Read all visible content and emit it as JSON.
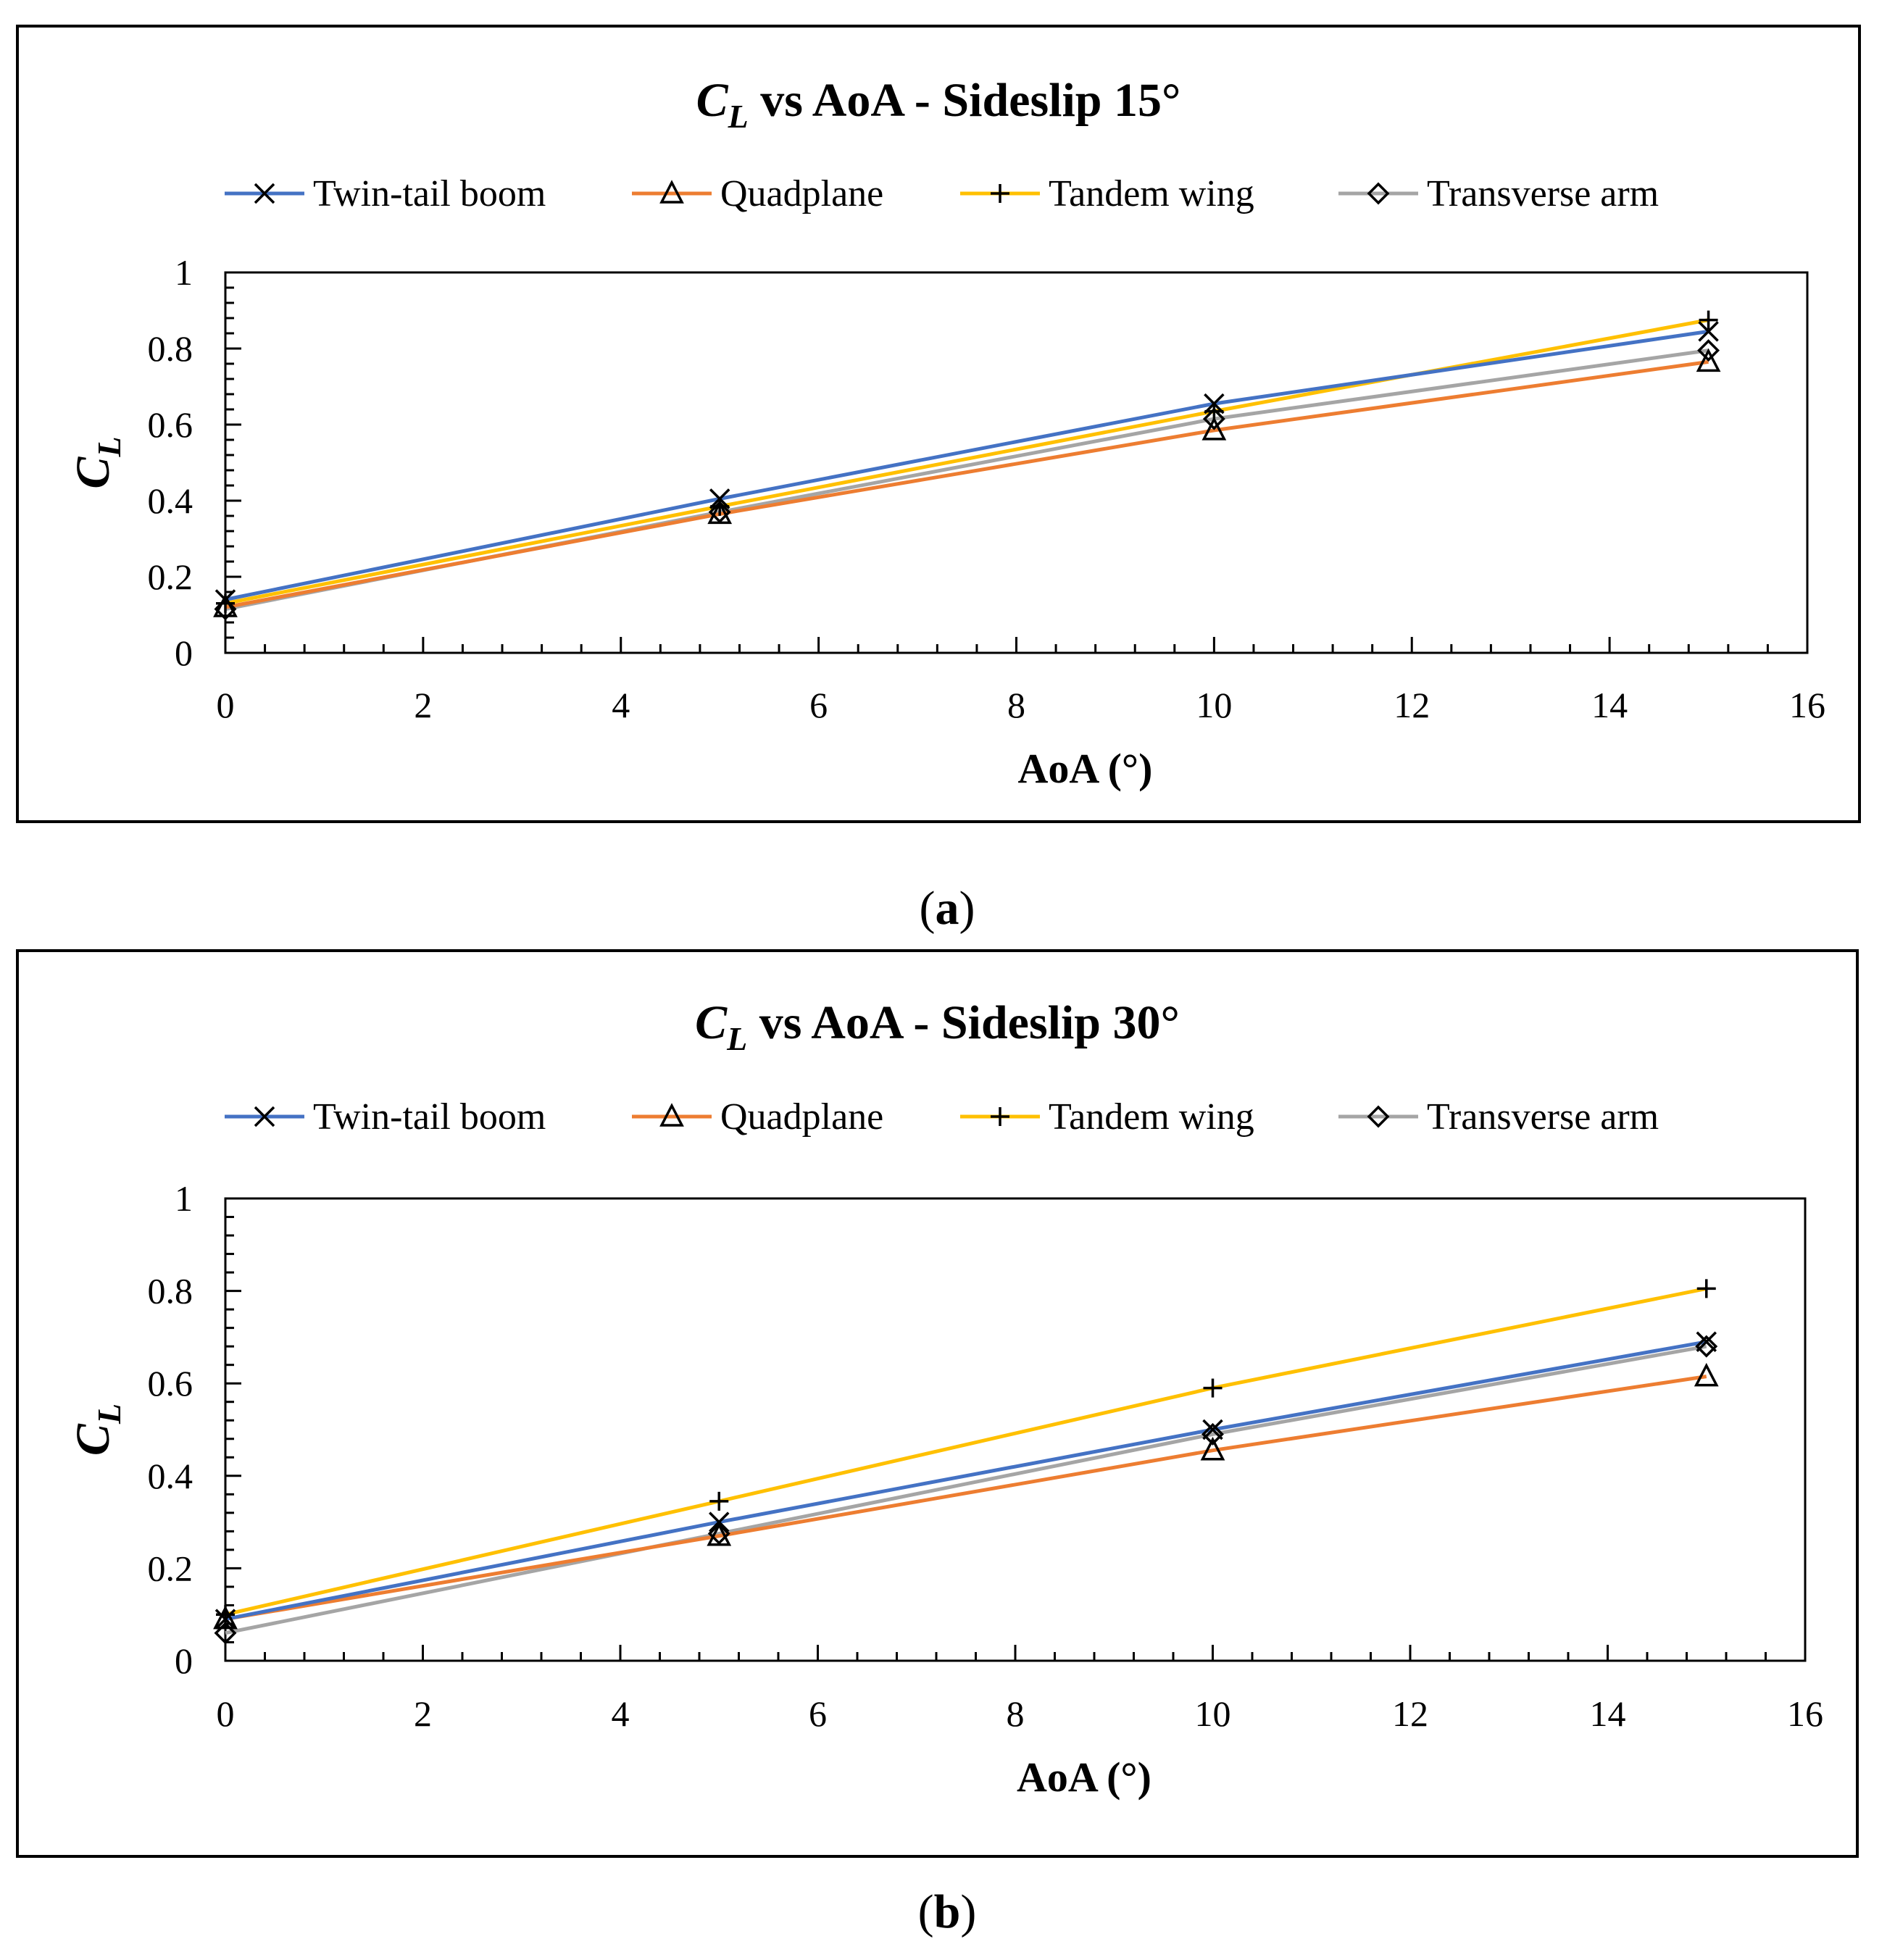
{
  "series_colors": {
    "twin": "#4472c4",
    "quad": "#ed7d31",
    "tandem": "#ffc000",
    "transverse": "#a5a5a5"
  },
  "chart_data": [
    {
      "type": "line",
      "title_symbol": "C",
      "title_subscript": "L",
      "title_rest": " vs AoA - Sideslip 15°",
      "xlabel": "AoA (°)",
      "ylabel_symbol": "C",
      "ylabel_subscript": "L",
      "caption": "a",
      "xlim": [
        0,
        16
      ],
      "ylim": [
        0,
        1
      ],
      "x_ticks": [
        "0",
        "2",
        "4",
        "6",
        "8",
        "10",
        "12",
        "14",
        "16"
      ],
      "y_ticks": [
        "0",
        "0.2",
        "0.4",
        "0.6",
        "0.8",
        "1"
      ],
      "x": [
        0,
        5,
        10,
        15
      ],
      "series": [
        {
          "key": "twin",
          "name": "Twin-tail boom",
          "marker": "x",
          "values": [
            0.14,
            0.405,
            0.655,
            0.845
          ]
        },
        {
          "key": "quad",
          "name": "Quadplane",
          "marker": "triangle",
          "values": [
            0.12,
            0.365,
            0.585,
            0.765
          ]
        },
        {
          "key": "tandem",
          "name": "Tandem wing",
          "marker": "plus",
          "values": [
            0.13,
            0.385,
            0.635,
            0.875
          ]
        },
        {
          "key": "transverse",
          "name": "Transverse arm",
          "marker": "diamond",
          "values": [
            0.115,
            0.37,
            0.615,
            0.795
          ]
        }
      ]
    },
    {
      "type": "line",
      "title_symbol": "C",
      "title_subscript": "L",
      "title_rest": " vs AoA - Sideslip 30°",
      "xlabel": "AoA (°)",
      "ylabel_symbol": "C",
      "ylabel_subscript": "L",
      "caption": "b",
      "xlim": [
        0,
        16
      ],
      "ylim": [
        0,
        1
      ],
      "x_ticks": [
        "0",
        "2",
        "4",
        "6",
        "8",
        "10",
        "12",
        "14",
        "16"
      ],
      "y_ticks": [
        "0",
        "0.2",
        "0.4",
        "0.6",
        "0.8",
        "1"
      ],
      "x": [
        0,
        5,
        10,
        15
      ],
      "series": [
        {
          "key": "twin",
          "name": "Twin-tail boom",
          "marker": "x",
          "values": [
            0.09,
            0.3,
            0.5,
            0.69
          ]
        },
        {
          "key": "quad",
          "name": "Quadplane",
          "marker": "triangle",
          "values": [
            0.09,
            0.27,
            0.455,
            0.615
          ]
        },
        {
          "key": "tandem",
          "name": "Tandem wing",
          "marker": "plus",
          "values": [
            0.1,
            0.345,
            0.59,
            0.805
          ]
        },
        {
          "key": "transverse",
          "name": "Transverse arm",
          "marker": "diamond",
          "values": [
            0.06,
            0.275,
            0.49,
            0.68
          ]
        }
      ]
    }
  ]
}
